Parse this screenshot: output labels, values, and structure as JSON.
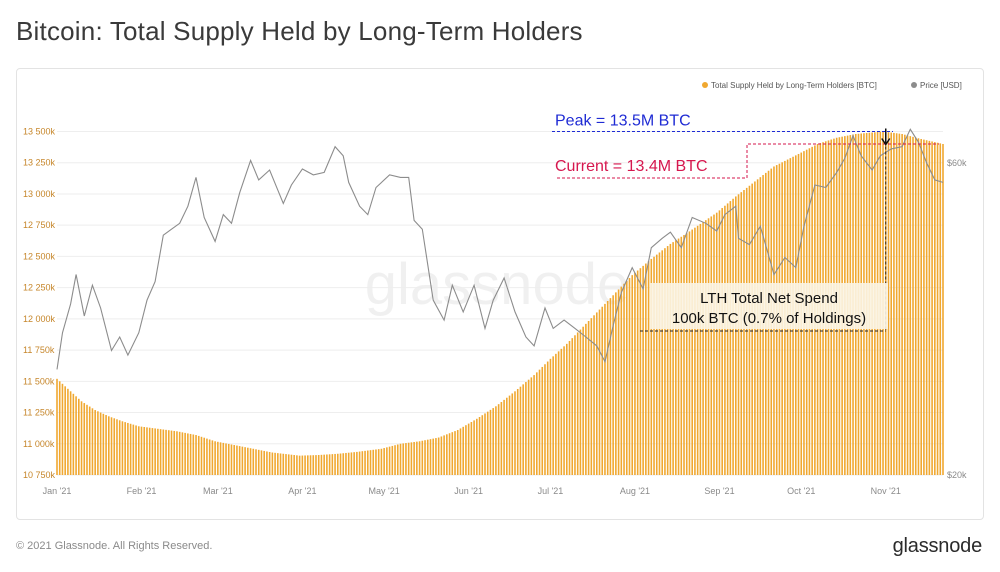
{
  "header": {
    "title": "Bitcoin: Total Supply Held by Long-Term Holders"
  },
  "footer": {
    "copyright": "© 2021 Glassnode. All Rights Reserved.",
    "brand": "glassnode"
  },
  "watermark": "glassnode",
  "colors": {
    "bars": "#f0a830",
    "price_line": "#8c8c8c",
    "peak": "#1f2bd4",
    "current": "#d6174e",
    "axis_text": "#8a8a8a",
    "annotation_bg": "#fbf4e4"
  },
  "chart_data": {
    "type": "bar",
    "title": "Bitcoin: Total Supply Held by Long-Term Holders",
    "xlabel": "",
    "ylabel": "",
    "ylim": [
      10750,
      13600
    ],
    "y2_scale": "log",
    "y2lim": [
      20000,
      70000
    ],
    "legend_position": "top-right",
    "legend": [
      "Total Supply Held by Long-Term Holders [BTC]",
      "Price [USD]"
    ],
    "y_ticks": [
      "10 750k",
      "11 000k",
      "11 250k",
      "11 500k",
      "11 750k",
      "12 000k",
      "12 250k",
      "12 500k",
      "12 750k",
      "13 000k",
      "13 250k",
      "13 500k"
    ],
    "y_tick_values": [
      10750,
      11000,
      11250,
      11500,
      11750,
      12000,
      12250,
      12500,
      12750,
      13000,
      13250,
      13500
    ],
    "y2_ticks": [
      {
        "label": "$20k",
        "value": 20000
      },
      {
        "label": "$60k",
        "value": 60000
      }
    ],
    "x_ticks": [
      "Jan '21",
      "Feb '21",
      "Mar '21",
      "Apr '21",
      "May '21",
      "Jun '21",
      "Jul '21",
      "Aug '21",
      "Sep '21",
      "Oct '21",
      "Nov '21"
    ],
    "x_tick_dates": [
      "2021-01-01",
      "2021-02-01",
      "2021-03-01",
      "2021-04-01",
      "2021-05-01",
      "2021-06-01",
      "2021-07-01",
      "2021-08-01",
      "2021-09-01",
      "2021-10-01",
      "2021-11-01"
    ],
    "x_range": [
      "2021-01-01",
      "2021-11-22"
    ],
    "series": [
      {
        "name": "Total Supply Held by Long-Term Holders [BTC]",
        "kind": "bar",
        "points": [
          [
            "2021-01-01",
            11520
          ],
          [
            "2021-01-05",
            11440
          ],
          [
            "2021-01-10",
            11340
          ],
          [
            "2021-01-15",
            11270
          ],
          [
            "2021-01-20",
            11220
          ],
          [
            "2021-01-25",
            11180
          ],
          [
            "2021-01-31",
            11140
          ],
          [
            "2021-02-07",
            11120
          ],
          [
            "2021-02-14",
            11100
          ],
          [
            "2021-02-21",
            11070
          ],
          [
            "2021-02-28",
            11020
          ],
          [
            "2021-03-07",
            10990
          ],
          [
            "2021-03-14",
            10960
          ],
          [
            "2021-03-21",
            10930
          ],
          [
            "2021-03-31",
            10905
          ],
          [
            "2021-04-07",
            10910
          ],
          [
            "2021-04-14",
            10920
          ],
          [
            "2021-04-21",
            10935
          ],
          [
            "2021-04-30",
            10960
          ],
          [
            "2021-05-07",
            11000
          ],
          [
            "2021-05-14",
            11020
          ],
          [
            "2021-05-21",
            11050
          ],
          [
            "2021-05-28",
            11110
          ],
          [
            "2021-06-04",
            11200
          ],
          [
            "2021-06-11",
            11300
          ],
          [
            "2021-06-18",
            11420
          ],
          [
            "2021-06-25",
            11550
          ],
          [
            "2021-07-01",
            11680
          ],
          [
            "2021-07-07",
            11800
          ],
          [
            "2021-07-14",
            11960
          ],
          [
            "2021-07-21",
            12120
          ],
          [
            "2021-07-31",
            12350
          ],
          [
            "2021-08-07",
            12480
          ],
          [
            "2021-08-14",
            12600
          ],
          [
            "2021-08-21",
            12700
          ],
          [
            "2021-08-31",
            12850
          ],
          [
            "2021-09-07",
            12980
          ],
          [
            "2021-09-14",
            13100
          ],
          [
            "2021-09-21",
            13220
          ],
          [
            "2021-09-30",
            13320
          ],
          [
            "2021-10-07",
            13400
          ],
          [
            "2021-10-14",
            13450
          ],
          [
            "2021-10-21",
            13480
          ],
          [
            "2021-10-31",
            13500
          ],
          [
            "2021-11-07",
            13480
          ],
          [
            "2021-11-14",
            13440
          ],
          [
            "2021-11-22",
            13400
          ]
        ]
      },
      {
        "name": "Price [USD]",
        "kind": "line",
        "axis": "right",
        "points": [
          [
            "2021-01-01",
            29000
          ],
          [
            "2021-01-03",
            33000
          ],
          [
            "2021-01-06",
            36500
          ],
          [
            "2021-01-08",
            40500
          ],
          [
            "2021-01-11",
            35000
          ],
          [
            "2021-01-14",
            39000
          ],
          [
            "2021-01-17",
            36000
          ],
          [
            "2021-01-21",
            31000
          ],
          [
            "2021-01-24",
            32500
          ],
          [
            "2021-01-27",
            30500
          ],
          [
            "2021-01-31",
            33000
          ],
          [
            "2021-02-03",
            37000
          ],
          [
            "2021-02-06",
            39500
          ],
          [
            "2021-02-09",
            46500
          ],
          [
            "2021-02-12",
            47500
          ],
          [
            "2021-02-15",
            48500
          ],
          [
            "2021-02-18",
            51500
          ],
          [
            "2021-02-21",
            57000
          ],
          [
            "2021-02-24",
            49500
          ],
          [
            "2021-02-28",
            45500
          ],
          [
            "2021-03-03",
            50000
          ],
          [
            "2021-03-06",
            48500
          ],
          [
            "2021-03-09",
            54000
          ],
          [
            "2021-03-13",
            60500
          ],
          [
            "2021-03-16",
            56500
          ],
          [
            "2021-03-20",
            58500
          ],
          [
            "2021-03-23",
            54500
          ],
          [
            "2021-03-25",
            52000
          ],
          [
            "2021-03-28",
            55500
          ],
          [
            "2021-04-01",
            58700
          ],
          [
            "2021-04-05",
            57500
          ],
          [
            "2021-04-09",
            58000
          ],
          [
            "2021-04-13",
            63500
          ],
          [
            "2021-04-16",
            61500
          ],
          [
            "2021-04-18",
            56000
          ],
          [
            "2021-04-22",
            51500
          ],
          [
            "2021-04-25",
            50000
          ],
          [
            "2021-04-28",
            55000
          ],
          [
            "2021-05-03",
            57500
          ],
          [
            "2021-05-07",
            57000
          ],
          [
            "2021-05-10",
            57000
          ],
          [
            "2021-05-12",
            49000
          ],
          [
            "2021-05-15",
            47500
          ],
          [
            "2021-05-19",
            37000
          ],
          [
            "2021-05-23",
            34500
          ],
          [
            "2021-05-26",
            39000
          ],
          [
            "2021-05-30",
            35500
          ],
          [
            "2021-06-03",
            39000
          ],
          [
            "2021-06-07",
            33500
          ],
          [
            "2021-06-10",
            37000
          ],
          [
            "2021-06-14",
            40000
          ],
          [
            "2021-06-18",
            35500
          ],
          [
            "2021-06-22",
            32500
          ],
          [
            "2021-06-25",
            31500
          ],
          [
            "2021-06-29",
            36000
          ],
          [
            "2021-07-02",
            33500
          ],
          [
            "2021-07-06",
            34500
          ],
          [
            "2021-07-10",
            33500
          ],
          [
            "2021-07-14",
            32500
          ],
          [
            "2021-07-18",
            31500
          ],
          [
            "2021-07-21",
            29800
          ],
          [
            "2021-07-24",
            33800
          ],
          [
            "2021-07-27",
            38000
          ],
          [
            "2021-07-31",
            41500
          ],
          [
            "2021-08-04",
            38500
          ],
          [
            "2021-08-07",
            44500
          ],
          [
            "2021-08-11",
            46000
          ],
          [
            "2021-08-14",
            47000
          ],
          [
            "2021-08-18",
            44500
          ],
          [
            "2021-08-22",
            49500
          ],
          [
            "2021-08-27",
            48500
          ],
          [
            "2021-08-31",
            47200
          ],
          [
            "2021-09-03",
            50000
          ],
          [
            "2021-09-07",
            51500
          ],
          [
            "2021-09-08",
            46000
          ],
          [
            "2021-09-12",
            45000
          ],
          [
            "2021-09-16",
            48000
          ],
          [
            "2021-09-21",
            40500
          ],
          [
            "2021-09-25",
            43000
          ],
          [
            "2021-09-29",
            41500
          ],
          [
            "2021-10-02",
            48000
          ],
          [
            "2021-10-06",
            55500
          ],
          [
            "2021-10-10",
            55000
          ],
          [
            "2021-10-14",
            58000
          ],
          [
            "2021-10-17",
            61000
          ],
          [
            "2021-10-20",
            66000
          ],
          [
            "2021-10-23",
            61500
          ],
          [
            "2021-10-27",
            58500
          ],
          [
            "2021-10-30",
            61500
          ],
          [
            "2021-11-03",
            63000
          ],
          [
            "2021-11-07",
            63500
          ],
          [
            "2021-11-10",
            67500
          ],
          [
            "2021-11-13",
            64500
          ],
          [
            "2021-11-16",
            60000
          ],
          [
            "2021-11-19",
            56500
          ],
          [
            "2021-11-22",
            56000
          ]
        ]
      }
    ],
    "annotations": [
      {
        "label": "Peak = 13.5M BTC",
        "value": 13500,
        "color": "peak"
      },
      {
        "label": "Current = 13.4M BTC",
        "value": 13400,
        "color": "current"
      },
      {
        "label_line1": "LTH Total Net Spend",
        "label_line2": "100k BTC (0.7% of Holdings)",
        "date": "2021-11-01"
      }
    ]
  }
}
